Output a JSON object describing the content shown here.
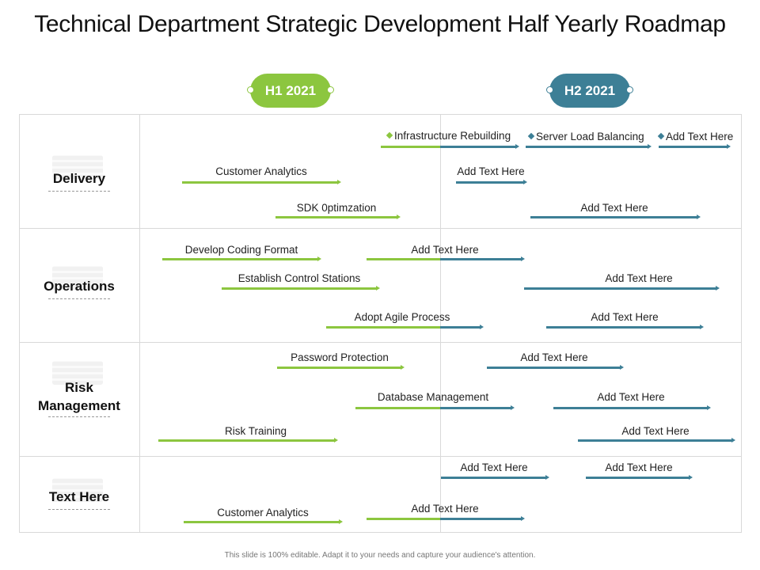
{
  "title": "Technical Department Strategic Development Half Yearly Roadmap",
  "periods": [
    "H1 2021",
    "H2 2021"
  ],
  "rows": [
    "Delivery",
    "Operations",
    "Risk\nManagement",
    "Text Here"
  ],
  "tasks": {
    "d1": "Infrastructure Rebuilding",
    "d2": "Server Load Balancing",
    "d3": "Add Text Here",
    "d4": "Customer Analytics",
    "d5": "Add Text Here",
    "d6": "SDK 0ptimzation",
    "d7": "Add Text Here",
    "o1": "Develop Coding Format",
    "o2": "Add Text Here",
    "o3": "Establish Control Stations",
    "o4": "Add Text Here",
    "o5": "Adopt Agile Process",
    "o6": "Add Text Here",
    "r1": "Password Protection",
    "r2": "Add Text Here",
    "r3": "Database Management",
    "r4": "Add Text Here",
    "r5": "Risk Training",
    "r6": "Add Text Here",
    "t1": "Add Text Here",
    "t2": "Add Text Here",
    "t3": "Customer Analytics",
    "t4": "Add Text Here"
  },
  "colors": {
    "h1": "#8cc63f",
    "h2": "#3d7f96",
    "grid": "#d9d9d9"
  },
  "footer": "This slide is 100% editable.  Adapt it to your needs and capture your audience's attention."
}
